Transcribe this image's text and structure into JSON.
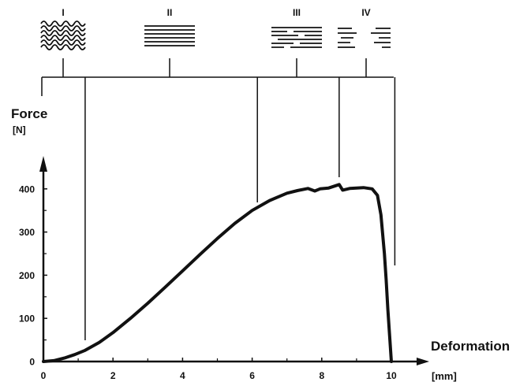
{
  "chart_data": {
    "type": "line",
    "xlabel": "Deformation",
    "xunit": "[mm]",
    "ylabel": "Force",
    "yunit": "[N]",
    "xlim": [
      0,
      10.6
    ],
    "ylim": [
      0,
      440
    ],
    "x_ticks": [
      0,
      2,
      4,
      6,
      8,
      10
    ],
    "y_ticks": [
      0,
      100,
      200,
      300,
      400
    ],
    "grid": false,
    "series": [
      {
        "x": [
          0,
          0.3,
          0.6,
          0.9,
          1.2,
          1.6,
          2.0,
          2.5,
          3.0,
          3.5,
          4.0,
          4.5,
          5.0,
          5.5,
          6.0,
          6.5,
          7.0,
          7.3,
          7.6,
          7.8,
          7.95,
          8.2,
          8.5,
          8.6,
          8.8,
          9.0,
          9.2,
          9.45,
          9.6,
          9.7,
          9.8,
          9.85,
          9.9,
          9.95,
          10.0
        ],
        "y": [
          0,
          2,
          8,
          16,
          26,
          44,
          67,
          100,
          135,
          172,
          210,
          248,
          285,
          320,
          350,
          373,
          390,
          396,
          401,
          395,
          400,
          402,
          410,
          397,
          401,
          402,
          403,
          400,
          385,
          340,
          250,
          190,
          120,
          60,
          0
        ]
      }
    ],
    "stage_labels": [
      "I",
      "II",
      "III",
      "IV"
    ],
    "stage_boundaries": [
      0,
      1.2,
      6.15,
      8.5,
      10.1
    ]
  }
}
